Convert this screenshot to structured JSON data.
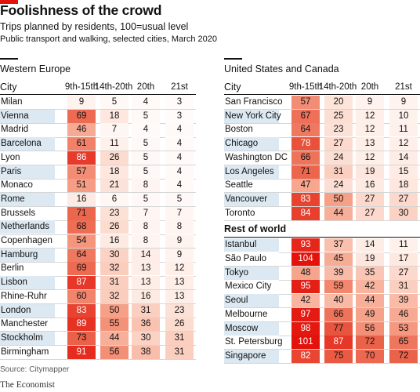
{
  "header": {
    "title": "Foolishness of the crowd",
    "subtitle": "Trips planned by residents, 100=usual level",
    "subtitle2": "Public transport and walking, selected cities, March 2020"
  },
  "footer": {
    "source": "Source: Citymapper",
    "brand": "The Economist"
  },
  "colors": {
    "accent": "#e3120b",
    "cityHighlight": "#dce9f2"
  },
  "chart_data": {
    "type": "table",
    "columns": [
      "City",
      "9th-15th",
      "14th-20th",
      "20th",
      "21st"
    ],
    "panels": [
      {
        "title": "Western Europe",
        "sections": [
          {
            "title": "",
            "rows": [
              {
                "city": "Milan",
                "values": [
                  9,
                  5,
                  4,
                  3
                ]
              },
              {
                "city": "Vienna",
                "values": [
                  69,
                  18,
                  5,
                  3
                ]
              },
              {
                "city": "Madrid",
                "values": [
                  46,
                  7,
                  4,
                  4
                ]
              },
              {
                "city": "Barcelona",
                "values": [
                  61,
                  11,
                  5,
                  4
                ]
              },
              {
                "city": "Lyon",
                "values": [
                  86,
                  26,
                  5,
                  4
                ]
              },
              {
                "city": "Paris",
                "values": [
                  57,
                  18,
                  5,
                  4
                ]
              },
              {
                "city": "Monaco",
                "values": [
                  51,
                  21,
                  8,
                  4
                ]
              },
              {
                "city": "Rome",
                "values": [
                  16,
                  6,
                  5,
                  5
                ]
              },
              {
                "city": "Brussels",
                "values": [
                  71,
                  23,
                  7,
                  7
                ]
              },
              {
                "city": "Netherlands",
                "values": [
                  68,
                  26,
                  8,
                  8
                ]
              },
              {
                "city": "Copenhagen",
                "values": [
                  54,
                  16,
                  8,
                  9
                ]
              },
              {
                "city": "Hamburg",
                "values": [
                  64,
                  30,
                  14,
                  9
                ]
              },
              {
                "city": "Berlin",
                "values": [
                  69,
                  32,
                  13,
                  12
                ]
              },
              {
                "city": "Lisbon",
                "values": [
                  87,
                  31,
                  13,
                  13
                ]
              },
              {
                "city": "Rhine-Ruhr",
                "values": [
                  60,
                  32,
                  16,
                  13
                ]
              },
              {
                "city": "London",
                "values": [
                  83,
                  50,
                  31,
                  23
                ]
              },
              {
                "city": "Manchester",
                "values": [
                  89,
                  55,
                  36,
                  26
                ]
              },
              {
                "city": "Stockholm",
                "values": [
                  73,
                  44,
                  30,
                  31
                ]
              },
              {
                "city": "Birmingham",
                "values": [
                  91,
                  56,
                  38,
                  31
                ]
              }
            ]
          }
        ]
      },
      {
        "title": "United States and Canada",
        "sections": [
          {
            "title": "",
            "rows": [
              {
                "city": "San Francisco",
                "values": [
                  57,
                  20,
                  9,
                  9
                ]
              },
              {
                "city": "New York City",
                "values": [
                  67,
                  25,
                  12,
                  10
                ]
              },
              {
                "city": "Boston",
                "values": [
                  64,
                  23,
                  12,
                  11
                ]
              },
              {
                "city": "Chicago",
                "values": [
                  78,
                  27,
                  13,
                  12
                ]
              },
              {
                "city": "Washington DC",
                "values": [
                  66,
                  24,
                  12,
                  14
                ]
              },
              {
                "city": "Los Angeles",
                "values": [
                  71,
                  31,
                  19,
                  15
                ]
              },
              {
                "city": "Seattle",
                "values": [
                  47,
                  24,
                  16,
                  18
                ]
              },
              {
                "city": "Vancouver",
                "values": [
                  83,
                  50,
                  27,
                  27
                ]
              },
              {
                "city": "Toronto",
                "values": [
                  84,
                  44,
                  27,
                  30
                ]
              }
            ]
          },
          {
            "title": "Rest of world",
            "rows": [
              {
                "city": "Istanbul",
                "values": [
                  93,
                  37,
                  14,
                  11
                ]
              },
              {
                "city": "São Paulo",
                "values": [
                  104,
                  45,
                  19,
                  17
                ]
              },
              {
                "city": "Tokyo",
                "values": [
                  48,
                  39,
                  35,
                  27
                ]
              },
              {
                "city": "Mexico City",
                "values": [
                  95,
                  59,
                  42,
                  31
                ]
              },
              {
                "city": "Seoul",
                "values": [
                  42,
                  40,
                  44,
                  39
                ]
              },
              {
                "city": "Melbourne",
                "values": [
                  97,
                  66,
                  49,
                  46
                ]
              },
              {
                "city": "Moscow",
                "values": [
                  98,
                  77,
                  56,
                  53
                ]
              },
              {
                "city": "St. Petersburg",
                "values": [
                  101,
                  87,
                  72,
                  65
                ]
              },
              {
                "city": "Singapore",
                "values": [
                  82,
                  75,
                  70,
                  72
                ]
              }
            ]
          }
        ]
      }
    ]
  }
}
